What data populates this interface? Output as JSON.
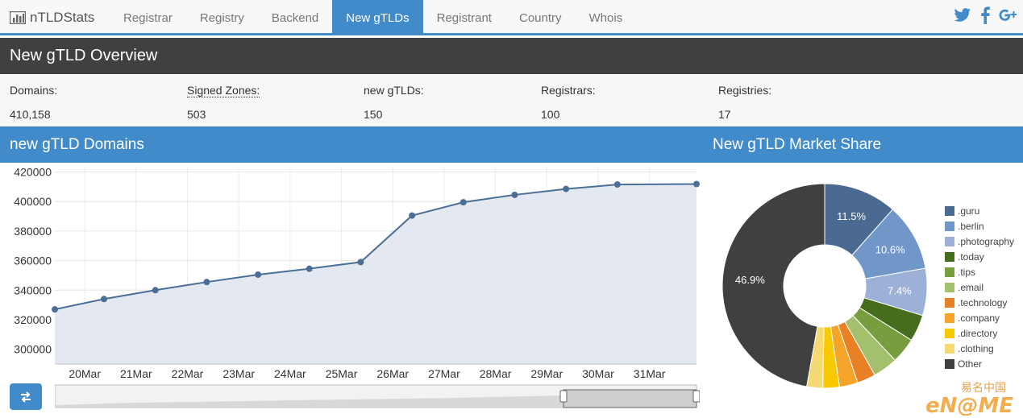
{
  "brand": {
    "name": "nTLDStats"
  },
  "nav": {
    "items": [
      {
        "label": "Registrar",
        "active": false
      },
      {
        "label": "Registry",
        "active": false
      },
      {
        "label": "Backend",
        "active": false
      },
      {
        "label": "New gTLDs",
        "active": true
      },
      {
        "label": "Registrant",
        "active": false
      },
      {
        "label": "Country",
        "active": false
      },
      {
        "label": "Whois",
        "active": false
      }
    ]
  },
  "social": {
    "icons": [
      "twitter-icon",
      "facebook-icon",
      "google-plus-icon"
    ]
  },
  "overview": {
    "title": "New gTLD Overview"
  },
  "stats": [
    {
      "label": "Domains:",
      "value": "410,158"
    },
    {
      "label": "Signed Zones:",
      "value": "503"
    },
    {
      "label": "new gTLDs:",
      "value": "150"
    },
    {
      "label": "Registrars:",
      "value": "100"
    },
    {
      "label": "Registries:",
      "value": "17"
    }
  ],
  "sections": {
    "domains_title": "new gTLD Domains",
    "market_title": "New gTLD Market Share"
  },
  "colors": {
    "accent": "#428bca",
    "dark": "#404040",
    "line": "#4b6e96",
    "area": "#e4e9f1"
  },
  "chart_data": [
    {
      "type": "area",
      "title": "new gTLD Domains",
      "x_ticks": [
        "20Mar",
        "21Mar",
        "22Mar",
        "23Mar",
        "24Mar",
        "25Mar",
        "26Mar",
        "27Mar",
        "28Mar",
        "29Mar",
        "30Mar",
        "31Mar"
      ],
      "y_ticks": [
        "300000",
        "320000",
        "340000",
        "360000",
        "380000",
        "400000",
        "420000"
      ],
      "ylim": [
        290000,
        423000
      ],
      "xlim": [
        "19Mar 10:00",
        "31Mar 22:00"
      ],
      "series": [
        {
          "x": [
            "19Mar 10:00",
            "20Mar 09:00",
            "21Mar 09:00",
            "22Mar 09:00",
            "23Mar 09:00",
            "24Mar 09:00",
            "25Mar 09:00",
            "26Mar 09:00",
            "27Mar 09:00",
            "28Mar 09:00",
            "29Mar 09:00",
            "30Mar 09:00",
            "31Mar 22:00"
          ],
          "values": [
            327000,
            334000,
            340000,
            345500,
            350500,
            354500,
            359000,
            390500,
            399500,
            404500,
            408500,
            411500,
            411800
          ]
        }
      ],
      "grid": true
    },
    {
      "type": "pie",
      "title": "New gTLD Market Share",
      "labels": [
        ".guru",
        ".berlin",
        ".photography",
        ".today",
        ".tips",
        ".email",
        ".technology",
        ".company",
        ".directory",
        ".clothing",
        "Other"
      ],
      "values": [
        11.5,
        10.6,
        7.4,
        4.2,
        4.0,
        3.9,
        2.9,
        2.9,
        2.6,
        2.5,
        46.9
      ],
      "data_labels": [
        "11.5%",
        "10.6%",
        "7.4%",
        "",
        "",
        "",
        "",
        "",
        "",
        "",
        "46.9%"
      ],
      "colors": [
        "#4b6a92",
        "#7197c9",
        "#9db0d8",
        "#466d1d",
        "#789d3f",
        "#a3c06d",
        "#e98025",
        "#f4a429",
        "#f8c800",
        "#f5da74",
        "#404040"
      ],
      "legend_placement": "right",
      "donut": true
    }
  ]
}
